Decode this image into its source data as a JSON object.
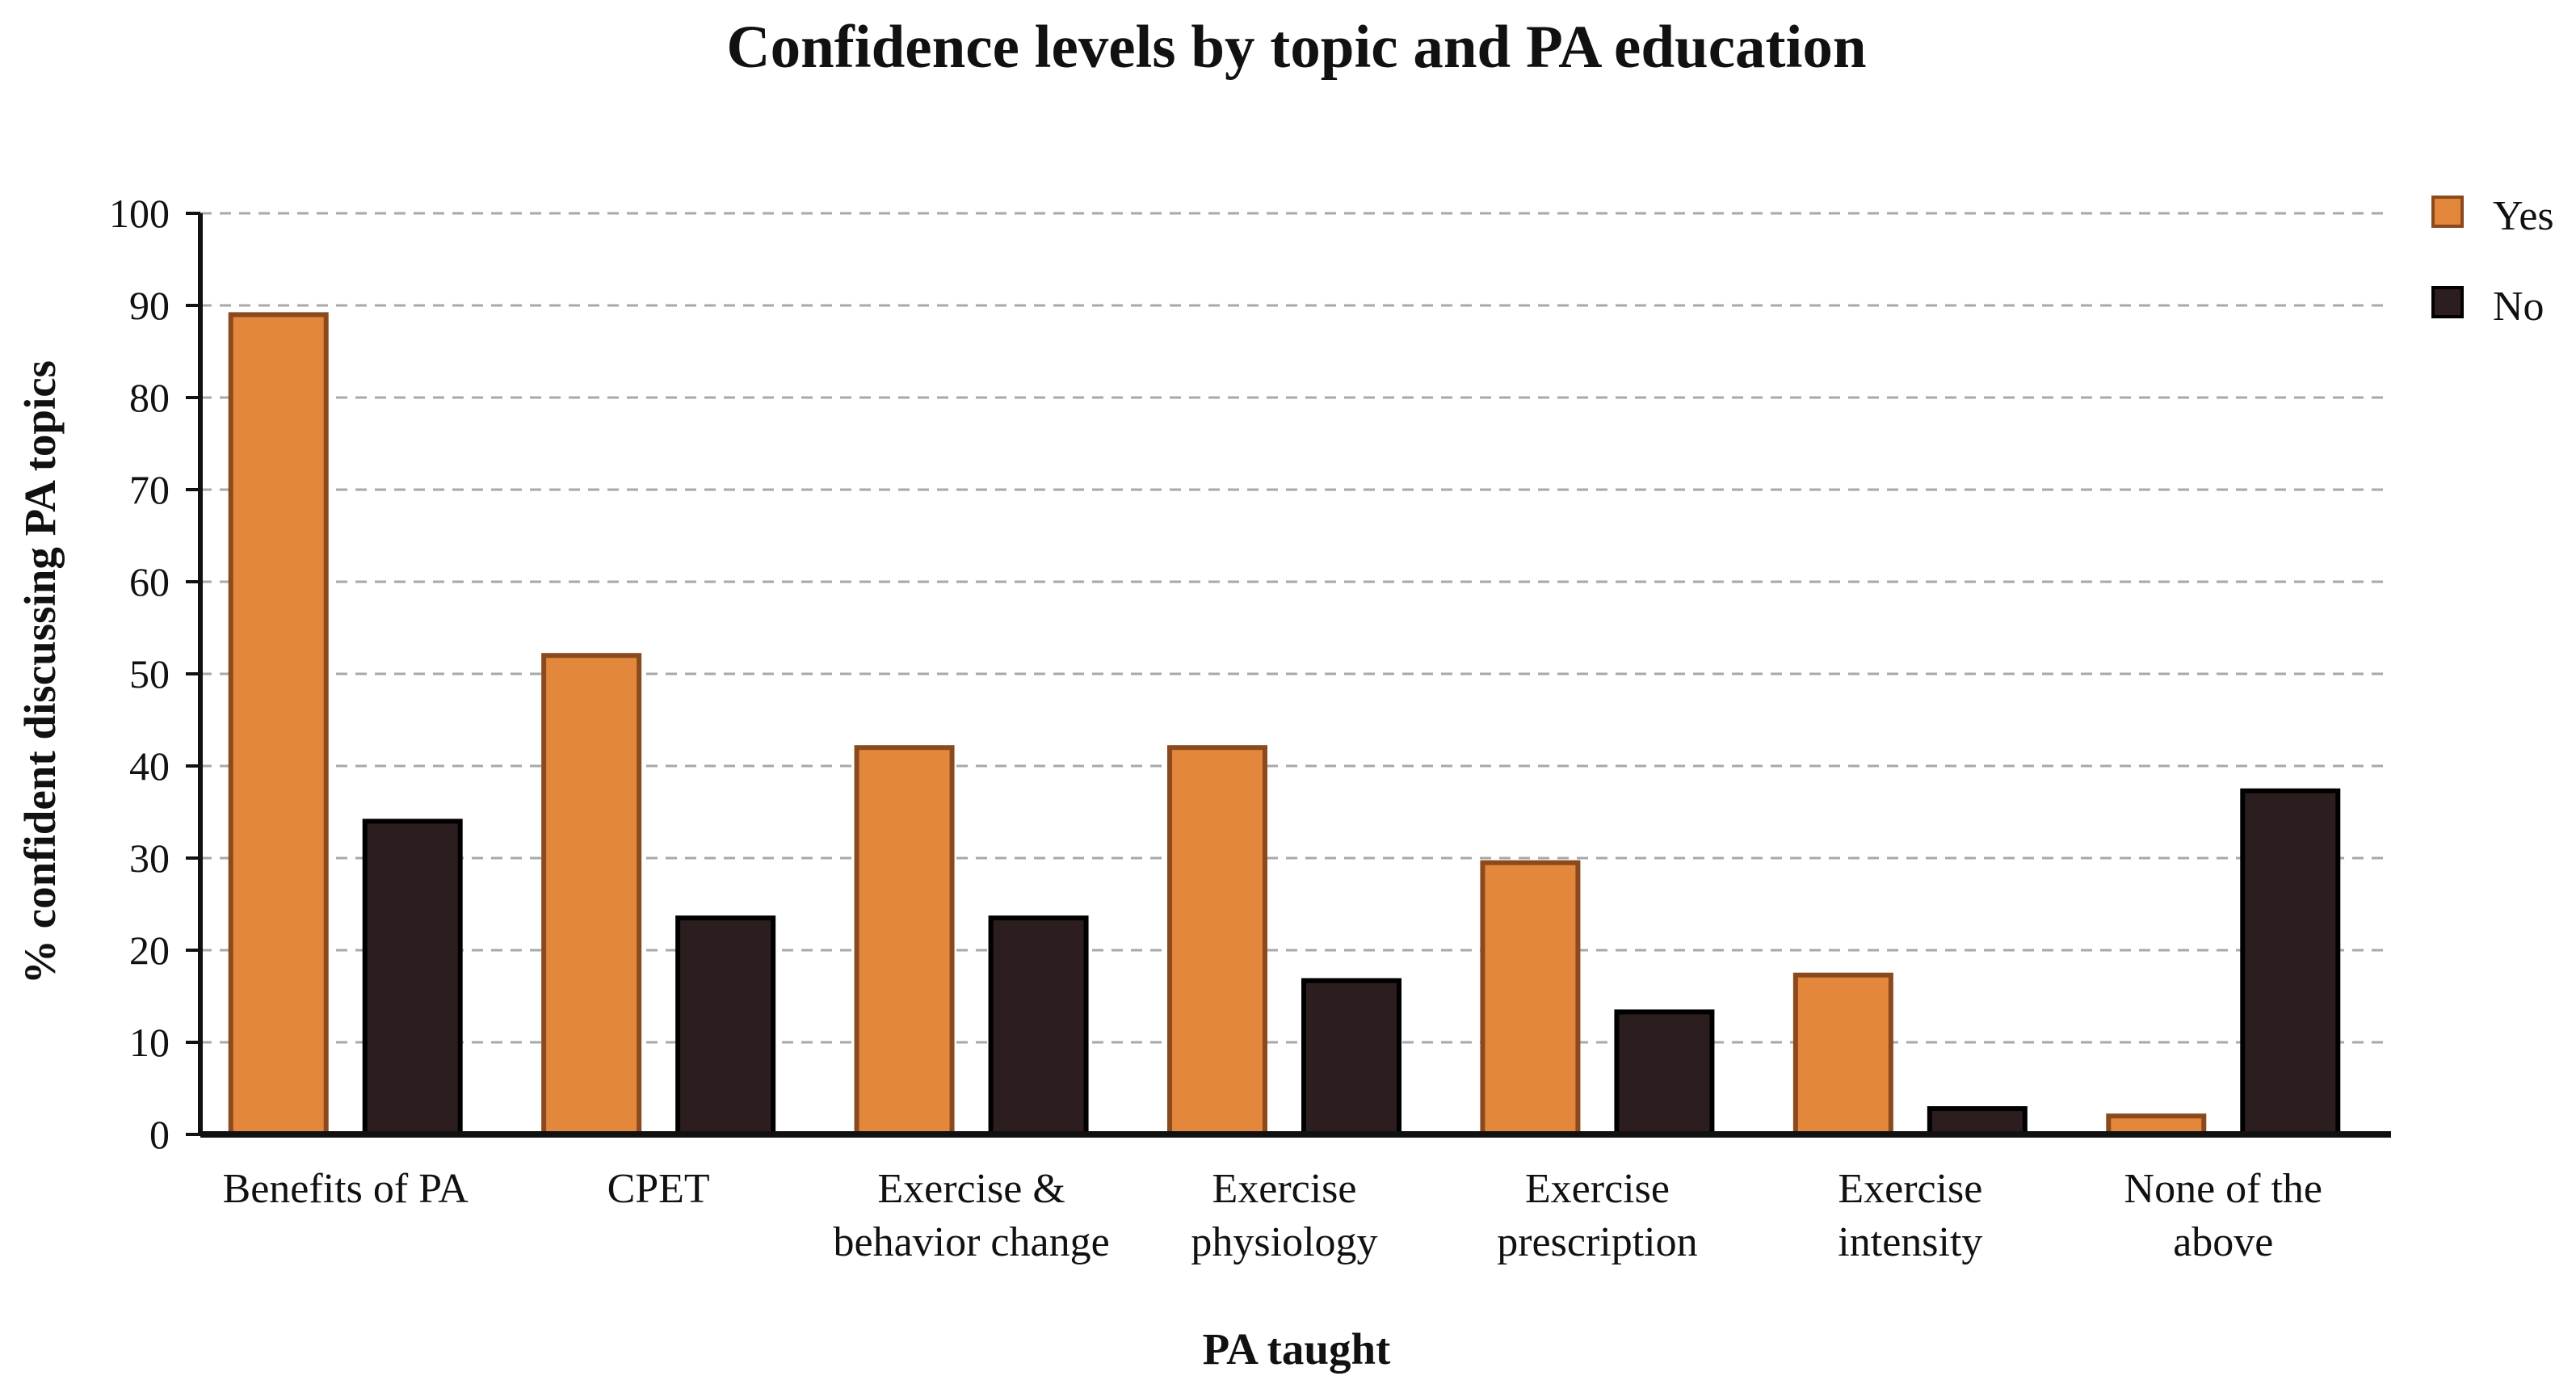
{
  "chart_data": {
    "type": "bar",
    "title": "Confidence levels by topic and PA education",
    "xlabel": "PA taught",
    "ylabel": "% confident discussing PA topics",
    "ylim": [
      0,
      100
    ],
    "yticks": [
      0,
      10,
      20,
      30,
      40,
      50,
      60,
      70,
      80,
      90,
      100
    ],
    "grid": true,
    "legend_position": "top-right",
    "categories": [
      [
        "Benefits of PA"
      ],
      [
        "CPET"
      ],
      [
        "Exercise &",
        "behavior change"
      ],
      [
        "Exercise",
        "physiology"
      ],
      [
        "Exercise",
        "prescription"
      ],
      [
        "Exercise",
        "intensity"
      ],
      [
        "None of the",
        "above"
      ]
    ],
    "series": [
      {
        "name": "Yes",
        "color": "#E2873B",
        "stroke": "#8A4A1E",
        "values": [
          89,
          52,
          42,
          42,
          29.5,
          17.3,
          2
        ]
      },
      {
        "name": "No",
        "color": "#2C1E1E",
        "stroke": "#000000",
        "values": [
          34,
          23.5,
          23.5,
          16.7,
          13.3,
          2.8,
          37.3
        ]
      }
    ]
  }
}
